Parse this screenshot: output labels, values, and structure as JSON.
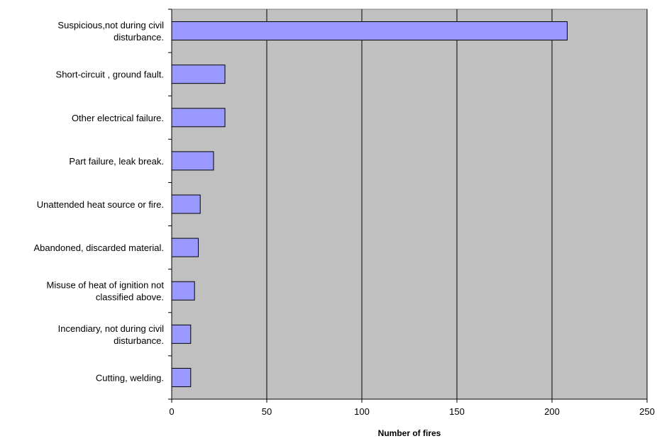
{
  "chart_data": {
    "type": "bar",
    "orientation": "horizontal",
    "categories": [
      "Suspicious,not during civil disturbance.",
      "Short-circuit , ground fault.",
      "Other electrical failure.",
      "Part failure, leak break.",
      "Unattended heat source or fire.",
      "Abandoned, discarded material.",
      "Misuse of heat of ignition not classified above.",
      "Incendiary, not during civil disturbance.",
      "Cutting, welding."
    ],
    "category_label_lines": [
      [
        "Suspicious,not during civil",
        "disturbance."
      ],
      [
        "Short-circuit , ground fault."
      ],
      [
        "Other electrical failure."
      ],
      [
        "Part failure, leak break."
      ],
      [
        "Unattended heat source or fire."
      ],
      [
        "Abandoned, discarded material."
      ],
      [
        "Misuse of heat of ignition not",
        "classified above."
      ],
      [
        "Incendiary, not during civil",
        "disturbance."
      ],
      [
        "Cutting, welding."
      ]
    ],
    "values": [
      208,
      28,
      28,
      22,
      15,
      14,
      12,
      10,
      10
    ],
    "xlabel": "Number of fires",
    "ylabel": "",
    "title": "",
    "xlim": [
      0,
      250
    ],
    "xticks": [
      "0",
      "50",
      "100",
      "150",
      "200",
      "250"
    ],
    "grid": "vertical",
    "legend": "none",
    "colors": {
      "bar_fill": "#9999ff",
      "bar_stroke": "#000000",
      "plot_background": "#c0c0c0",
      "grid": "#000000"
    }
  }
}
